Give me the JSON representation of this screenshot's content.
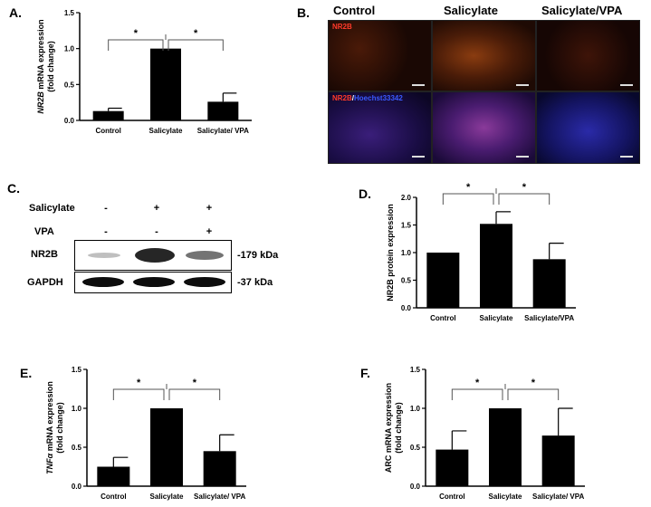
{
  "panels": {
    "A": {
      "letter": "A.",
      "chart_data": {
        "type": "bar",
        "categories": [
          "Control",
          "Salicylate",
          "Salicylate/ VPA"
        ],
        "values": [
          0.13,
          1.0,
          0.26
        ],
        "errors": [
          0.04,
          0.0,
          0.12
        ],
        "ylabel_italic": "NR2B",
        "ylabel_rest": " mRNA expression",
        "ylabel_line2": "(fold change)",
        "ylim": [
          0,
          1.5
        ],
        "yticks": [
          "0.0",
          "0.5",
          "1.0",
          "1.5"
        ],
        "significance": [
          "*",
          "*"
        ]
      }
    },
    "B": {
      "letter": "B.",
      "columns": [
        "Control",
        "Salicylate",
        "Salicylate/VPA"
      ],
      "row1_label": "NR2B",
      "row2_label_red": "NR2B",
      "row2_label_sep": "/",
      "row2_label_blue": "Hoechst33342"
    },
    "C": {
      "letter": "C.",
      "rows": [
        {
          "label": "Salicylate",
          "signs": [
            "-",
            "+",
            "+"
          ]
        },
        {
          "label": "VPA",
          "signs": [
            "-",
            "-",
            "+"
          ]
        }
      ],
      "bands": [
        {
          "label": "NR2B",
          "size": "-179 kDa"
        },
        {
          "label": "GAPDH",
          "size": "-37 kDa"
        }
      ]
    },
    "D": {
      "letter": "D.",
      "chart_data": {
        "type": "bar",
        "categories": [
          "Control",
          "Salicylate",
          "Salicylate/VPA"
        ],
        "values": [
          1.0,
          1.52,
          0.88
        ],
        "errors": [
          0.0,
          0.22,
          0.29
        ],
        "ylabel": "NR2B protein expression",
        "ylim": [
          0,
          2.0
        ],
        "yticks": [
          "0.0",
          "0.5",
          "1.0",
          "1.5",
          "2.0"
        ],
        "significance": [
          "*",
          "*"
        ]
      }
    },
    "E": {
      "letter": "E.",
      "chart_data": {
        "type": "bar",
        "categories": [
          "Control",
          "Salicylate",
          "Salicylate/ VPA"
        ],
        "values": [
          0.25,
          1.0,
          0.45
        ],
        "errors": [
          0.12,
          0.0,
          0.21
        ],
        "ylabel_italic": "TNFα",
        "ylabel_rest": " mRNA expression",
        "ylabel_line2": "(fold change)",
        "ylim": [
          0,
          1.5
        ],
        "yticks": [
          "0.0",
          "0.5",
          "1.0",
          "1.5"
        ],
        "significance": [
          "*",
          "*"
        ]
      }
    },
    "F": {
      "letter": "F.",
      "chart_data": {
        "type": "bar",
        "categories": [
          "Control",
          "Salicylate",
          "Salicylate/ VPA"
        ],
        "values": [
          0.47,
          1.0,
          0.65
        ],
        "errors": [
          0.24,
          0.0,
          0.35
        ],
        "ylabel": "ARC mRNA expression",
        "ylabel_line2": "(fold change)",
        "ylim": [
          0,
          1.5
        ],
        "yticks": [
          "0.0",
          "0.5",
          "1.0",
          "1.5"
        ],
        "significance": [
          "*",
          "*"
        ]
      }
    }
  }
}
